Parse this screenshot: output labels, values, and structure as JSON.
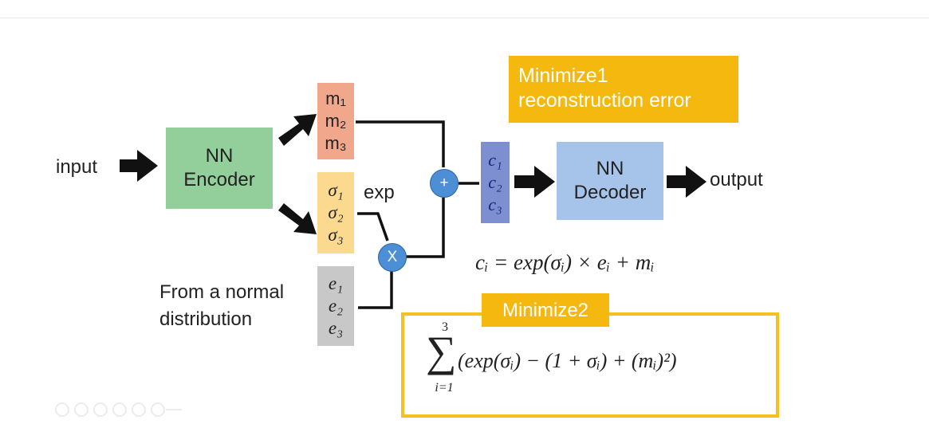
{
  "colors": {
    "encoder": "#92cf9a",
    "decoder": "#a6c4ea",
    "mean": "#f1a78b",
    "sigma": "#fbd98e",
    "noise": "#c8c8c8",
    "code": "#7d8fd0",
    "operator": "#4d8fd6",
    "highlight": "#f5b80e"
  },
  "labels": {
    "input": "input",
    "output": "output",
    "exp": "exp",
    "normal_line1": "From a normal",
    "normal_line2": "distribution"
  },
  "encoder": {
    "line1": "NN",
    "line2": "Encoder"
  },
  "decoder": {
    "line1": "NN",
    "line2": "Decoder"
  },
  "m": [
    "m₁",
    "m₂",
    "m₃"
  ],
  "sigma": [
    "σ₁",
    "σ₂",
    "σ₃"
  ],
  "e": [
    "e₁",
    "e₂",
    "e₃"
  ],
  "c": [
    "c₁",
    "c₂",
    "c₃"
  ],
  "ops": {
    "plus": "+",
    "times": "X"
  },
  "minimize1": {
    "line1": "Minimize1",
    "line2": "reconstruction error"
  },
  "minimize2": "Minimize2",
  "equation_c": "cᵢ = exp(σᵢ) × eᵢ + mᵢ",
  "sum": {
    "upper": "3",
    "lower": "i=1",
    "symbol": "∑",
    "expression": "(exp(σᵢ) − (1 + σᵢ) + (mᵢ)²)"
  },
  "icons": [
    "arrow-icon",
    "plus-icon",
    "multiply-icon"
  ]
}
